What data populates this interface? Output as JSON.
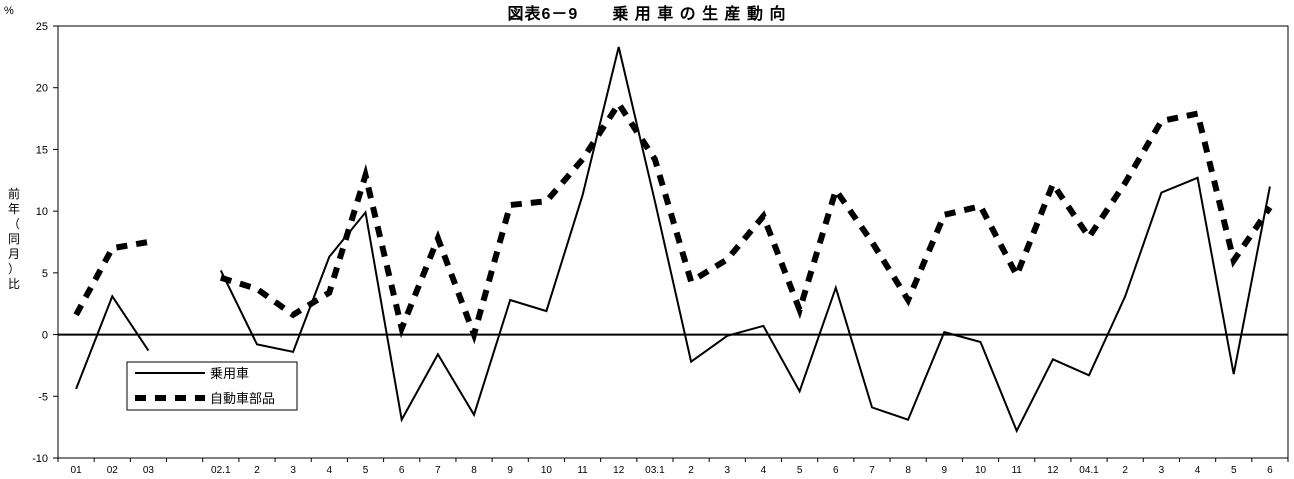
{
  "chart_data": {
    "type": "line",
    "title": "図表6－9　　乗 用 車 の 生 産 動 向",
    "yunit": "%",
    "ylabel_chars": [
      "前",
      "年",
      "（",
      "同",
      "月",
      "）",
      "比"
    ],
    "ylim": [
      -10,
      25
    ],
    "yticks": [
      -10,
      -5,
      0,
      5,
      10,
      15,
      20,
      25
    ],
    "categories": [
      "01",
      "02",
      "03",
      "",
      "02.1",
      "2",
      "3",
      "4",
      "5",
      "6",
      "7",
      "8",
      "9",
      "10",
      "11",
      "12",
      "03.1",
      "2",
      "3",
      "4",
      "5",
      "6",
      "7",
      "8",
      "9",
      "10",
      "11",
      "12",
      "04.1",
      "2",
      "3",
      "4",
      "5",
      "6"
    ],
    "grid": false,
    "legend_position": "bottom-left",
    "series": [
      {
        "name": "乗用車",
        "style": "solid",
        "color": "#000000",
        "values": [
          -4.4,
          3.1,
          -1.3,
          null,
          5.2,
          -0.8,
          -1.4,
          6.3,
          9.9,
          -6.9,
          -1.6,
          -6.5,
          2.8,
          1.9,
          11.3,
          23.3,
          10.8,
          -2.2,
          -0.1,
          0.7,
          -4.6,
          3.8,
          -5.9,
          -6.9,
          0.2,
          -0.6,
          -7.8,
          -2.0,
          -3.3,
          3.1,
          11.5,
          12.7,
          -3.2,
          12.0
        ]
      },
      {
        "name": "自動車部品",
        "style": "dashed",
        "color": "#000000",
        "values": [
          1.6,
          7.0,
          7.5,
          null,
          4.6,
          3.7,
          1.6,
          3.4,
          12.9,
          0.5,
          7.8,
          0.0,
          10.5,
          10.8,
          14.2,
          18.7,
          14.2,
          4.3,
          6.1,
          9.6,
          2.0,
          11.7,
          7.5,
          2.8,
          9.7,
          10.4,
          4.8,
          12.2,
          7.9,
          12.3,
          17.3,
          17.9,
          6.0,
          10.3
        ]
      }
    ]
  }
}
